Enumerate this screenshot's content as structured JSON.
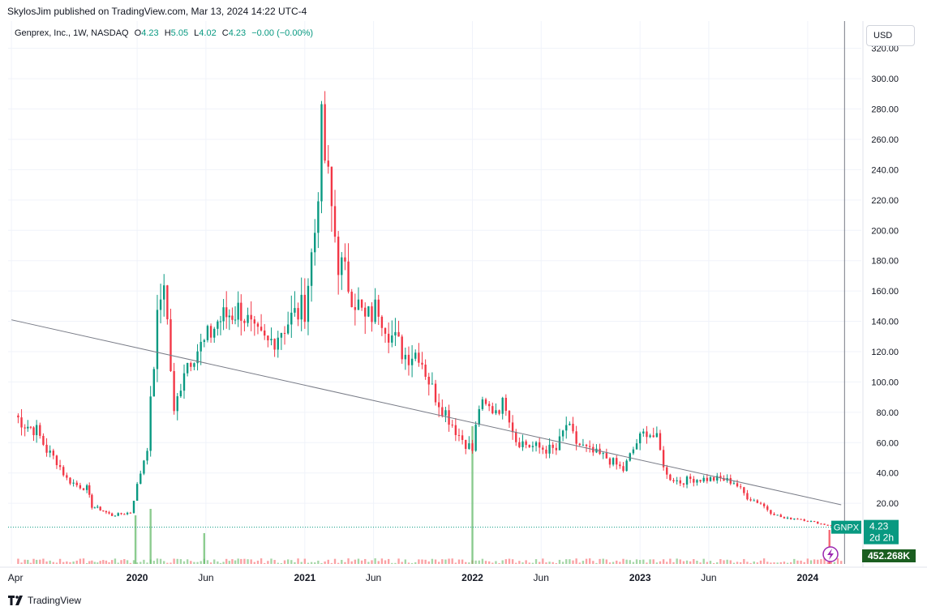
{
  "publisher_line": "SkylosJim published on TradingView.com, Mar 13, 2024 14:22 UTC-4",
  "legend": {
    "name": "Genprex, Inc., 1W, NASDAQ",
    "o_key": "O",
    "o_val": "4.23",
    "h_key": "H",
    "h_val": "5.05",
    "l_key": "L",
    "l_val": "4.02",
    "c_key": "C",
    "c_val": "4.23",
    "change": "−0.00 (−0.00%)"
  },
  "currency_button": "USD",
  "symbol_badge": "GNPX",
  "last_price": "4.23",
  "countdown": "2d 2h",
  "volume_label": "452.268K",
  "brand": "TradingView",
  "icons": {
    "lightning": "lightning-icon",
    "logo": "tradingview-logo-icon"
  },
  "colors": {
    "up": "#089981",
    "down": "#f23645",
    "vol_up": "#a5d6a7",
    "vol_down": "#faa1a4",
    "trendline": "#787b86"
  },
  "chart_data": {
    "type": "candlestick",
    "symbol": "GNPX",
    "interval": "1W",
    "y_axis": {
      "ticks": [
        20,
        40,
        60,
        80,
        100,
        120,
        140,
        160,
        180,
        200,
        220,
        240,
        260,
        280,
        300,
        320
      ],
      "range": [
        -20,
        338
      ],
      "position": "right"
    },
    "x_axis": {
      "ticks": [
        "Apr",
        "2020",
        "Jun",
        "2021",
        "Jun",
        "2022",
        "Jun",
        "2023",
        "Jun",
        "2024"
      ]
    },
    "grid": true,
    "last_price": 4.23,
    "last_price_badge": "4.23",
    "weekly_closes_approx": [
      [
        2019.27,
        78
      ],
      [
        2019.33,
        72
      ],
      [
        2019.4,
        68
      ],
      [
        2019.46,
        55
      ],
      [
        2019.52,
        48
      ],
      [
        2019.58,
        36
      ],
      [
        2019.64,
        32
      ],
      [
        2019.7,
        30
      ],
      [
        2019.73,
        18
      ],
      [
        2019.78,
        16
      ],
      [
        2019.85,
        12
      ],
      [
        2019.96,
        14
      ],
      [
        2020.06,
        58
      ],
      [
        2020.12,
        140
      ],
      [
        2020.16,
        170
      ],
      [
        2020.22,
        78
      ],
      [
        2020.28,
        110
      ],
      [
        2020.34,
        120
      ],
      [
        2020.4,
        125
      ],
      [
        2020.48,
        140
      ],
      [
        2020.55,
        145
      ],
      [
        2020.62,
        148
      ],
      [
        2020.7,
        130
      ],
      [
        2020.78,
        125
      ],
      [
        2020.9,
        140
      ],
      [
        2021.0,
        150
      ],
      [
        2021.06,
        200
      ],
      [
        2021.1,
        265
      ],
      [
        2021.14,
        230
      ],
      [
        2021.2,
        180
      ],
      [
        2021.28,
        160
      ],
      [
        2021.36,
        140
      ],
      [
        2021.44,
        150
      ],
      [
        2021.52,
        130
      ],
      [
        2021.6,
        118
      ],
      [
        2021.68,
        120
      ],
      [
        2021.76,
        95
      ],
      [
        2021.84,
        80
      ],
      [
        2021.92,
        65
      ],
      [
        2022.0,
        55
      ],
      [
        2022.04,
        84
      ],
      [
        2022.12,
        82
      ],
      [
        2022.2,
        86
      ],
      [
        2022.26,
        62
      ],
      [
        2022.34,
        58
      ],
      [
        2022.42,
        56
      ],
      [
        2022.5,
        55
      ],
      [
        2022.56,
        72
      ],
      [
        2022.62,
        60
      ],
      [
        2022.7,
        54
      ],
      [
        2022.8,
        50
      ],
      [
        2022.9,
        42
      ],
      [
        2022.98,
        60
      ],
      [
        2023.04,
        68
      ],
      [
        2023.1,
        62
      ],
      [
        2023.16,
        38
      ],
      [
        2023.24,
        34
      ],
      [
        2023.3,
        36
      ],
      [
        2023.4,
        36
      ],
      [
        2023.48,
        36
      ],
      [
        2023.56,
        34
      ],
      [
        2023.64,
        24
      ],
      [
        2023.72,
        20
      ],
      [
        2023.78,
        14
      ],
      [
        2023.86,
        10
      ],
      [
        2023.94,
        10
      ],
      [
        2024.02,
        8
      ],
      [
        2024.1,
        6
      ],
      [
        2024.16,
        5
      ],
      [
        2024.2,
        4.23
      ]
    ],
    "trendline": {
      "from": [
        2019.25,
        141
      ],
      "to": [
        2024.2,
        19
      ]
    },
    "volume": {
      "label": "452.268K",
      "spikes": [
        [
          2019.99,
          "up"
        ],
        [
          2020.08,
          "up"
        ],
        [
          2020.4,
          "up"
        ],
        [
          2022.0,
          "up"
        ],
        [
          2024.13,
          "down"
        ]
      ]
    }
  }
}
